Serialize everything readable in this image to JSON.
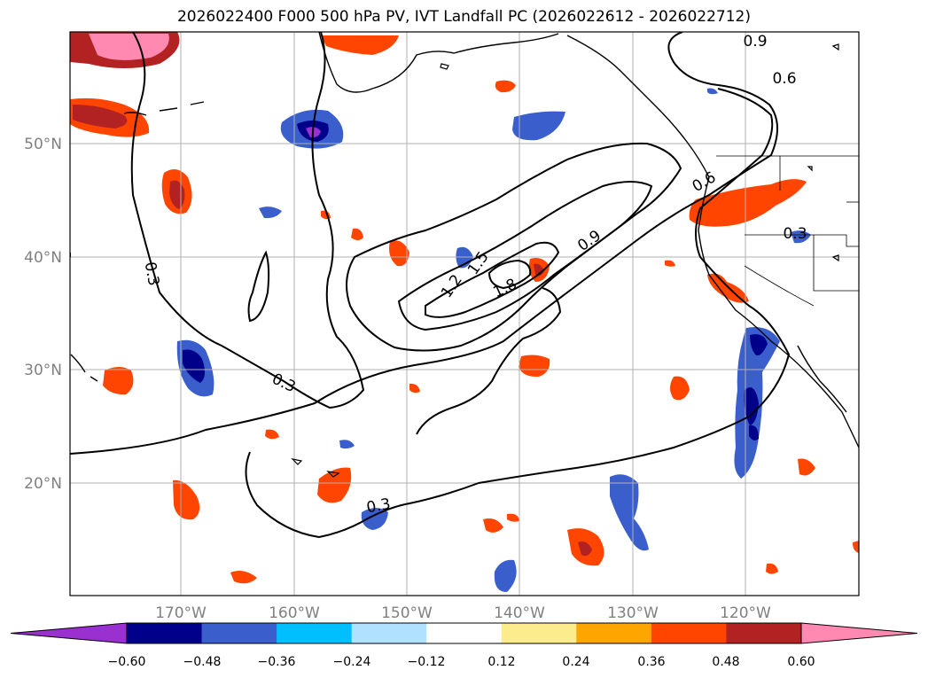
{
  "title": "2026022400 F000 500 hPa PV, IVT Landfall PC (2026022612 - 2026022712)",
  "map": {
    "lat_labels": [
      "50°N",
      "40°N",
      "30°N",
      "20°N"
    ],
    "lon_labels": [
      "170°W",
      "160°W",
      "150°W",
      "140°W",
      "130°W",
      "120°W"
    ],
    "contour_labels": [
      "0.9",
      "0.6",
      "0.6",
      "0.3",
      "0.3",
      "0.9",
      "1.5",
      "1.2",
      "1.8",
      "0.3",
      "0.3"
    ]
  },
  "colorbar": {
    "tick_labels": [
      "−0.60",
      "−0.48",
      "−0.36",
      "−0.24",
      "−0.12",
      "0.12",
      "0.24",
      "0.36",
      "0.48",
      "0.60"
    ],
    "colors": [
      "#9b30d0",
      "#00008b",
      "#3a5fcd",
      "#00bfff",
      "#b0e2ff",
      "#ffffff",
      "#fcec8e",
      "#ffa500",
      "#ff4500",
      "#b22222",
      "#ff89b0"
    ]
  }
}
